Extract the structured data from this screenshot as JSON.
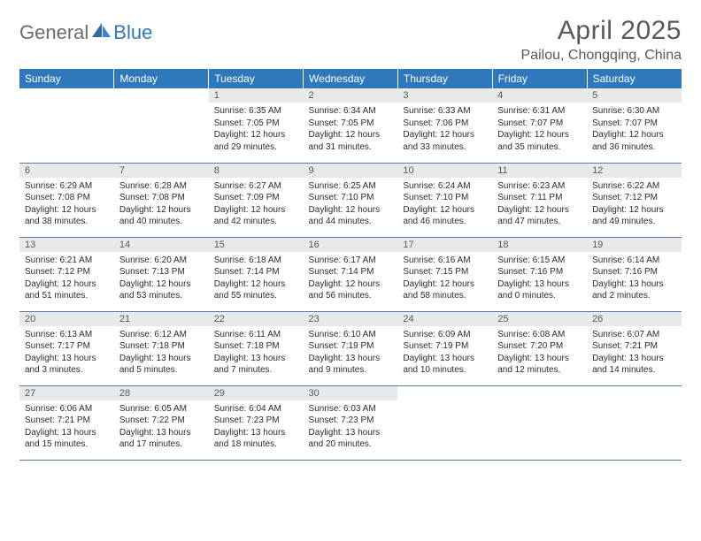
{
  "logo": {
    "general": "General",
    "blue": "Blue"
  },
  "title": "April 2025",
  "location": "Pailou, Chongqing, China",
  "colors": {
    "header_bg": "#3078bc",
    "header_text": "#ffffff",
    "daynum_bg": "#e9e9e9",
    "daynum_text": "#5a5a5a",
    "body_text": "#2b2b2b",
    "rule": "#5b7a9a",
    "title_text": "#595959",
    "logo_gray": "#6b6b6b",
    "logo_blue": "#3078bc"
  },
  "weekdays": [
    "Sunday",
    "Monday",
    "Tuesday",
    "Wednesday",
    "Thursday",
    "Friday",
    "Saturday"
  ],
  "weeks": [
    [
      {
        "n": "",
        "sunrise": "",
        "sunset": "",
        "daylight": ""
      },
      {
        "n": "",
        "sunrise": "",
        "sunset": "",
        "daylight": ""
      },
      {
        "n": "1",
        "sunrise": "Sunrise: 6:35 AM",
        "sunset": "Sunset: 7:05 PM",
        "daylight": "Daylight: 12 hours and 29 minutes."
      },
      {
        "n": "2",
        "sunrise": "Sunrise: 6:34 AM",
        "sunset": "Sunset: 7:05 PM",
        "daylight": "Daylight: 12 hours and 31 minutes."
      },
      {
        "n": "3",
        "sunrise": "Sunrise: 6:33 AM",
        "sunset": "Sunset: 7:06 PM",
        "daylight": "Daylight: 12 hours and 33 minutes."
      },
      {
        "n": "4",
        "sunrise": "Sunrise: 6:31 AM",
        "sunset": "Sunset: 7:07 PM",
        "daylight": "Daylight: 12 hours and 35 minutes."
      },
      {
        "n": "5",
        "sunrise": "Sunrise: 6:30 AM",
        "sunset": "Sunset: 7:07 PM",
        "daylight": "Daylight: 12 hours and 36 minutes."
      }
    ],
    [
      {
        "n": "6",
        "sunrise": "Sunrise: 6:29 AM",
        "sunset": "Sunset: 7:08 PM",
        "daylight": "Daylight: 12 hours and 38 minutes."
      },
      {
        "n": "7",
        "sunrise": "Sunrise: 6:28 AM",
        "sunset": "Sunset: 7:08 PM",
        "daylight": "Daylight: 12 hours and 40 minutes."
      },
      {
        "n": "8",
        "sunrise": "Sunrise: 6:27 AM",
        "sunset": "Sunset: 7:09 PM",
        "daylight": "Daylight: 12 hours and 42 minutes."
      },
      {
        "n": "9",
        "sunrise": "Sunrise: 6:25 AM",
        "sunset": "Sunset: 7:10 PM",
        "daylight": "Daylight: 12 hours and 44 minutes."
      },
      {
        "n": "10",
        "sunrise": "Sunrise: 6:24 AM",
        "sunset": "Sunset: 7:10 PM",
        "daylight": "Daylight: 12 hours and 46 minutes."
      },
      {
        "n": "11",
        "sunrise": "Sunrise: 6:23 AM",
        "sunset": "Sunset: 7:11 PM",
        "daylight": "Daylight: 12 hours and 47 minutes."
      },
      {
        "n": "12",
        "sunrise": "Sunrise: 6:22 AM",
        "sunset": "Sunset: 7:12 PM",
        "daylight": "Daylight: 12 hours and 49 minutes."
      }
    ],
    [
      {
        "n": "13",
        "sunrise": "Sunrise: 6:21 AM",
        "sunset": "Sunset: 7:12 PM",
        "daylight": "Daylight: 12 hours and 51 minutes."
      },
      {
        "n": "14",
        "sunrise": "Sunrise: 6:20 AM",
        "sunset": "Sunset: 7:13 PM",
        "daylight": "Daylight: 12 hours and 53 minutes."
      },
      {
        "n": "15",
        "sunrise": "Sunrise: 6:18 AM",
        "sunset": "Sunset: 7:14 PM",
        "daylight": "Daylight: 12 hours and 55 minutes."
      },
      {
        "n": "16",
        "sunrise": "Sunrise: 6:17 AM",
        "sunset": "Sunset: 7:14 PM",
        "daylight": "Daylight: 12 hours and 56 minutes."
      },
      {
        "n": "17",
        "sunrise": "Sunrise: 6:16 AM",
        "sunset": "Sunset: 7:15 PM",
        "daylight": "Daylight: 12 hours and 58 minutes."
      },
      {
        "n": "18",
        "sunrise": "Sunrise: 6:15 AM",
        "sunset": "Sunset: 7:16 PM",
        "daylight": "Daylight: 13 hours and 0 minutes."
      },
      {
        "n": "19",
        "sunrise": "Sunrise: 6:14 AM",
        "sunset": "Sunset: 7:16 PM",
        "daylight": "Daylight: 13 hours and 2 minutes."
      }
    ],
    [
      {
        "n": "20",
        "sunrise": "Sunrise: 6:13 AM",
        "sunset": "Sunset: 7:17 PM",
        "daylight": "Daylight: 13 hours and 3 minutes."
      },
      {
        "n": "21",
        "sunrise": "Sunrise: 6:12 AM",
        "sunset": "Sunset: 7:18 PM",
        "daylight": "Daylight: 13 hours and 5 minutes."
      },
      {
        "n": "22",
        "sunrise": "Sunrise: 6:11 AM",
        "sunset": "Sunset: 7:18 PM",
        "daylight": "Daylight: 13 hours and 7 minutes."
      },
      {
        "n": "23",
        "sunrise": "Sunrise: 6:10 AM",
        "sunset": "Sunset: 7:19 PM",
        "daylight": "Daylight: 13 hours and 9 minutes."
      },
      {
        "n": "24",
        "sunrise": "Sunrise: 6:09 AM",
        "sunset": "Sunset: 7:19 PM",
        "daylight": "Daylight: 13 hours and 10 minutes."
      },
      {
        "n": "25",
        "sunrise": "Sunrise: 6:08 AM",
        "sunset": "Sunset: 7:20 PM",
        "daylight": "Daylight: 13 hours and 12 minutes."
      },
      {
        "n": "26",
        "sunrise": "Sunrise: 6:07 AM",
        "sunset": "Sunset: 7:21 PM",
        "daylight": "Daylight: 13 hours and 14 minutes."
      }
    ],
    [
      {
        "n": "27",
        "sunrise": "Sunrise: 6:06 AM",
        "sunset": "Sunset: 7:21 PM",
        "daylight": "Daylight: 13 hours and 15 minutes."
      },
      {
        "n": "28",
        "sunrise": "Sunrise: 6:05 AM",
        "sunset": "Sunset: 7:22 PM",
        "daylight": "Daylight: 13 hours and 17 minutes."
      },
      {
        "n": "29",
        "sunrise": "Sunrise: 6:04 AM",
        "sunset": "Sunset: 7:23 PM",
        "daylight": "Daylight: 13 hours and 18 minutes."
      },
      {
        "n": "30",
        "sunrise": "Sunrise: 6:03 AM",
        "sunset": "Sunset: 7:23 PM",
        "daylight": "Daylight: 13 hours and 20 minutes."
      },
      {
        "n": "",
        "sunrise": "",
        "sunset": "",
        "daylight": ""
      },
      {
        "n": "",
        "sunrise": "",
        "sunset": "",
        "daylight": ""
      },
      {
        "n": "",
        "sunrise": "",
        "sunset": "",
        "daylight": ""
      }
    ]
  ]
}
